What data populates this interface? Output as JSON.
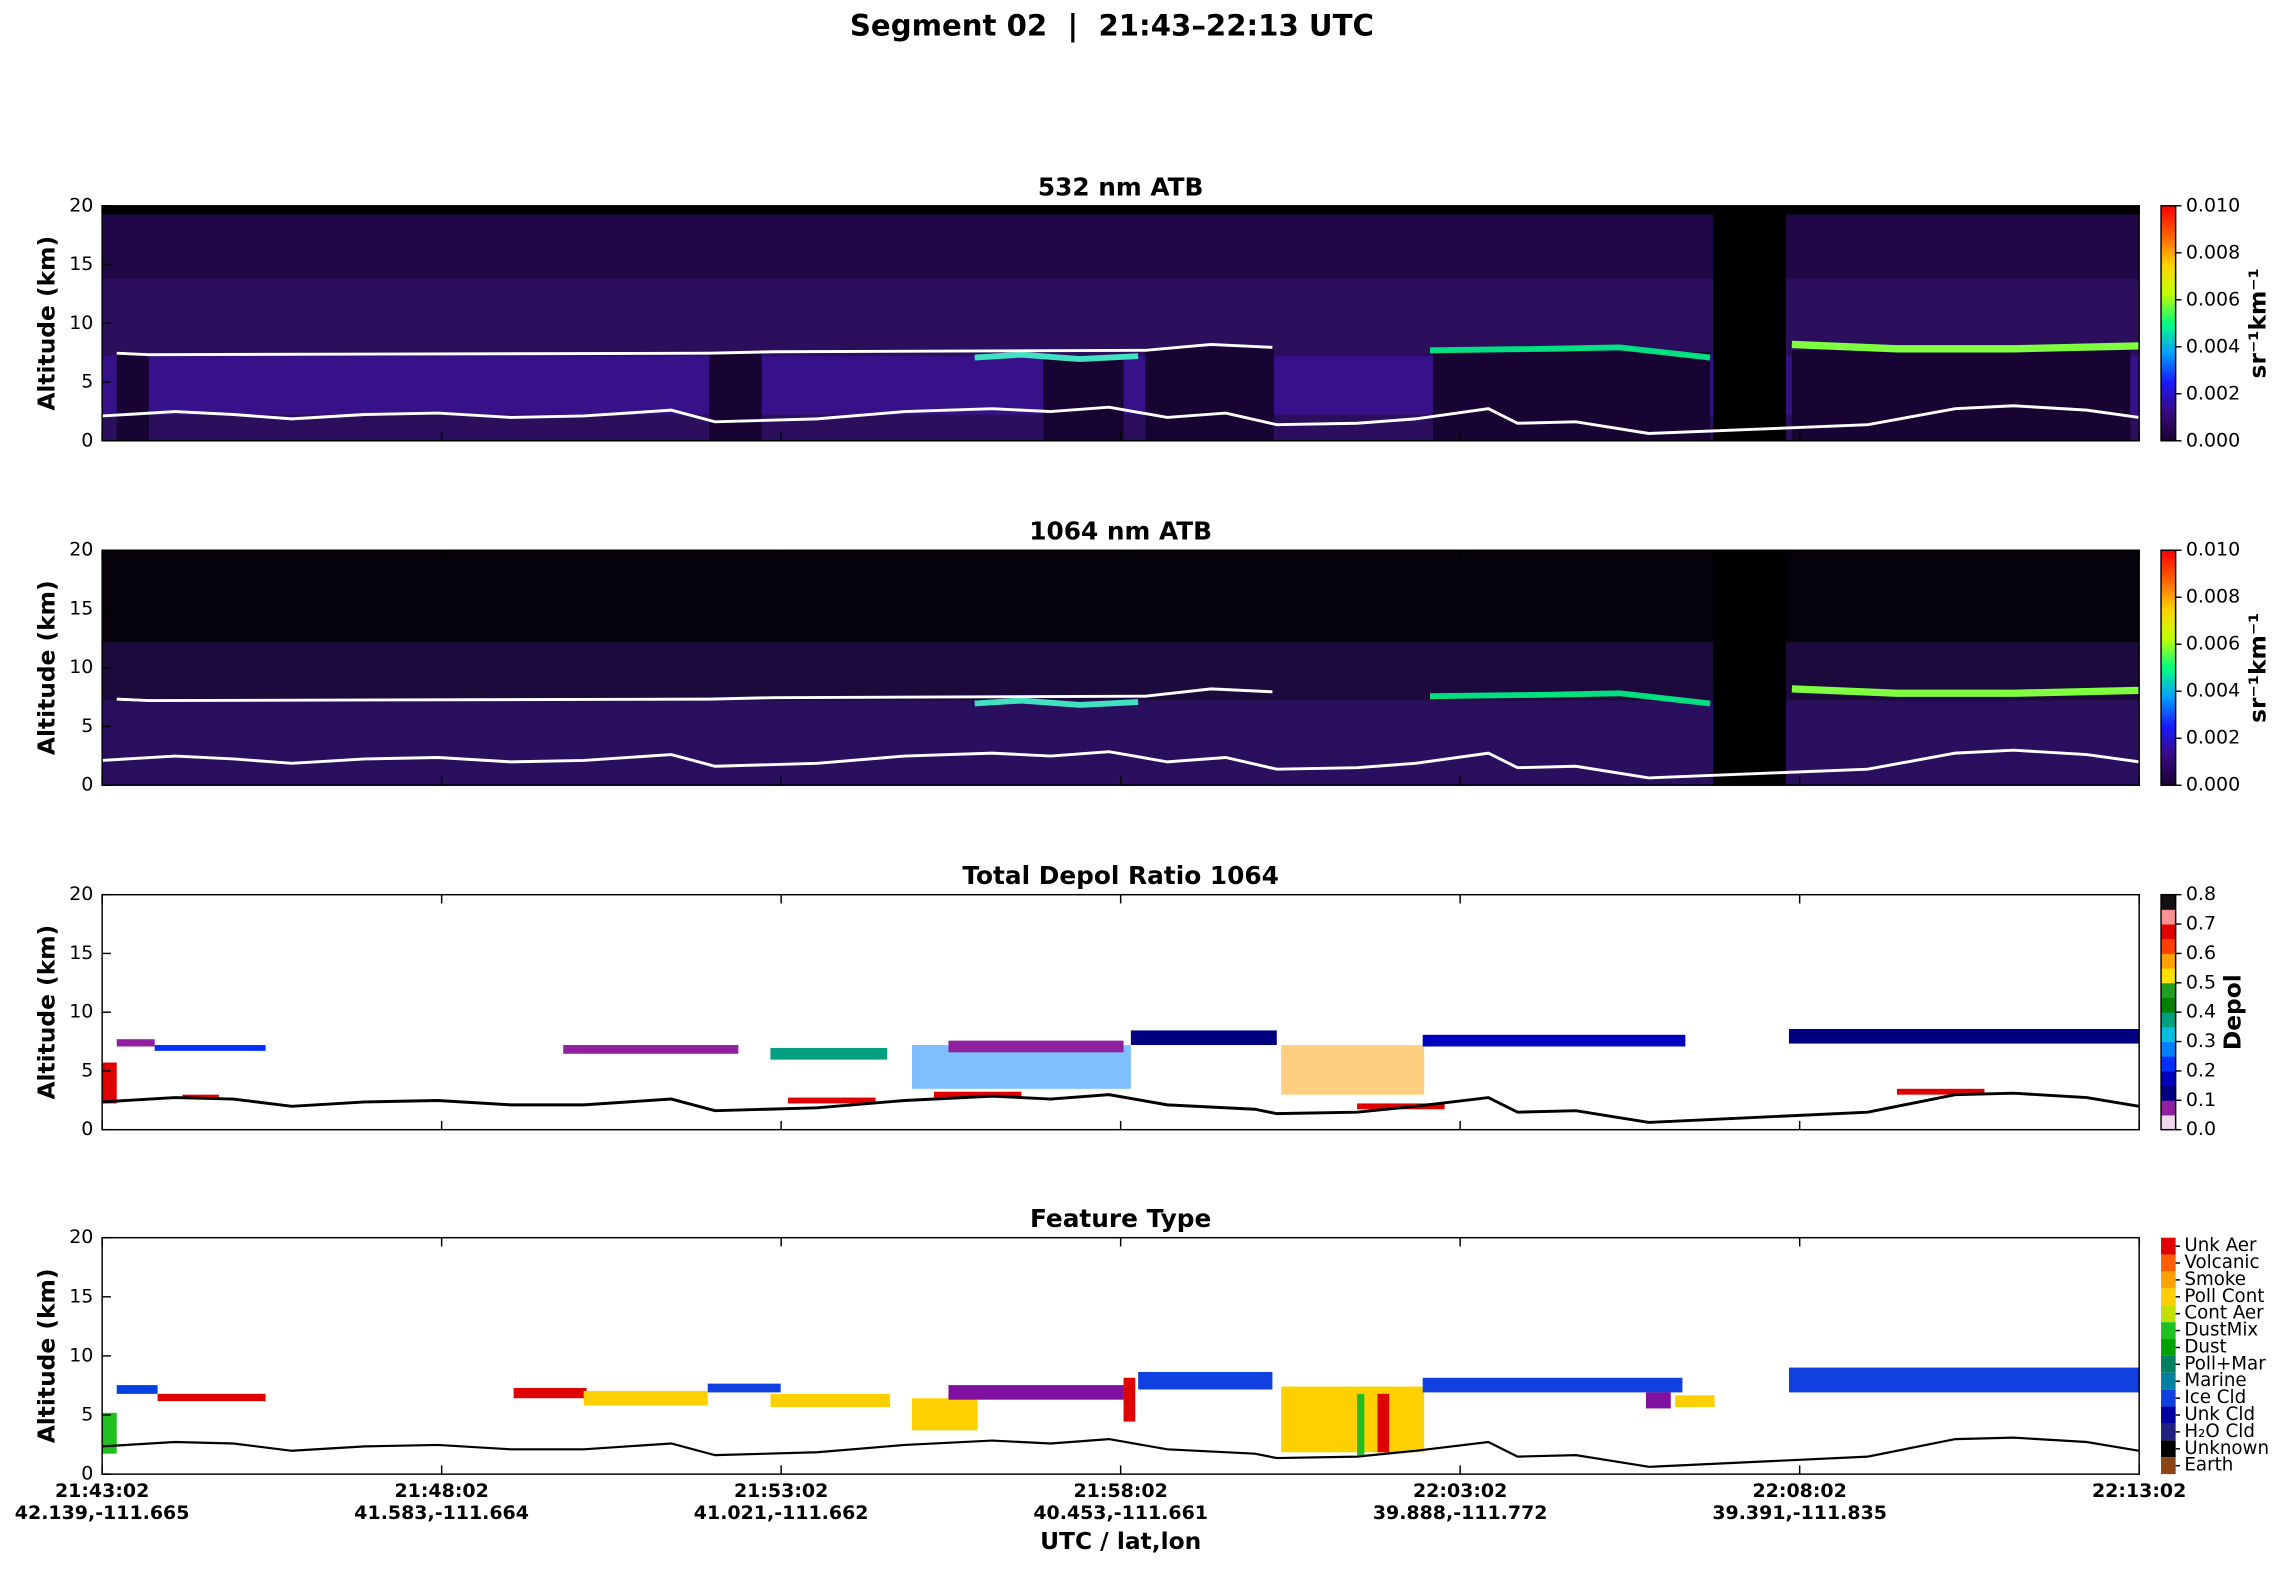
{
  "title": "Segment 02  |  21:43–22:13 UTC",
  "xlabel": "UTC / lat,lon",
  "xticks": [
    {
      "time": "21:43:02",
      "latlon": "42.139,-111.665"
    },
    {
      "time": "21:48:02",
      "latlon": "41.583,-111.664"
    },
    {
      "time": "21:53:02",
      "latlon": "41.021,-111.662"
    },
    {
      "time": "21:58:02",
      "latlon": "40.453,-111.661"
    },
    {
      "time": "22:03:02",
      "latlon": "39.888,-111.772"
    },
    {
      "time": "22:08:02",
      "latlon": "39.391,-111.835"
    },
    {
      "time": "22:13:02"
    }
  ],
  "chart_data": [
    {
      "type": "heatmap",
      "title": "532 nm ATB",
      "ylabel": "Altitude (km)",
      "ylim": [
        0,
        20
      ],
      "yticks": [
        0,
        5,
        10,
        15,
        20
      ],
      "colorbar": {
        "label": "sr⁻¹km⁻¹",
        "lim": [
          0,
          0.01
        ],
        "ticks": [
          {
            "value": 0,
            "label": "0.000"
          },
          {
            "value": 0.002,
            "label": "0.002"
          },
          {
            "value": 0.004,
            "label": "0.004"
          },
          {
            "value": 0.006,
            "label": "0.006"
          },
          {
            "value": 0.008,
            "label": "0.008"
          },
          {
            "value": 0.01,
            "label": "0.010"
          }
        ],
        "colors": [
          "#1a0033",
          "#3a0a80",
          "#1a1aff",
          "#00a0ff",
          "#00ff80",
          "#c0ff00",
          "#ffd000",
          "#ff6000",
          "#ff0000"
        ]
      }
    },
    {
      "type": "heatmap",
      "title": "1064 nm ATB",
      "ylabel": "Altitude (km)",
      "ylim": [
        0,
        20
      ],
      "yticks": [
        0,
        5,
        10,
        15,
        20
      ],
      "colorbar": {
        "label": "sr⁻¹km⁻¹",
        "lim": [
          0,
          0.01
        ],
        "ticks": [
          {
            "value": 0,
            "label": "0.000"
          },
          {
            "value": 0.002,
            "label": "0.002"
          },
          {
            "value": 0.004,
            "label": "0.004"
          },
          {
            "value": 0.006,
            "label": "0.006"
          },
          {
            "value": 0.008,
            "label": "0.008"
          },
          {
            "value": 0.01,
            "label": "0.010"
          }
        ],
        "colors": [
          "#1a0033",
          "#3a0a80",
          "#1a1aff",
          "#00a0ff",
          "#00ff80",
          "#c0ff00",
          "#ffd000",
          "#ff6000",
          "#ff0000"
        ]
      }
    },
    {
      "type": "heatmap",
      "title": "Total Depol Ratio 1064",
      "ylabel": "Altitude (km)",
      "ylim": [
        0,
        20
      ],
      "yticks": [
        0,
        5,
        10,
        15,
        20
      ],
      "colorbar": {
        "label": "Depol",
        "lim": [
          0,
          0.8
        ],
        "ticks": [
          {
            "value": 0,
            "label": "0.0"
          },
          0.1,
          0.2,
          0.3,
          0.4,
          0.5,
          0.6,
          0.7,
          0.8
        ],
        "colors": [
          "#f0d8f0",
          "#9020a0",
          "#000080",
          "#0000c0",
          "#0030ff",
          "#0080ff",
          "#00c0e0",
          "#00a080",
          "#008000",
          "#20a020",
          "#ffe000",
          "#ffa000",
          "#ff4000",
          "#e00000",
          "#ff9090",
          "#101010"
        ]
      }
    },
    {
      "type": "heatmap",
      "title": "Feature Type",
      "ylabel": "Altitude (km)",
      "ylim": [
        0,
        20
      ],
      "yticks": [
        0,
        5,
        10,
        15,
        20
      ],
      "colorbar": {
        "categories": [
          "Unk Aer",
          "Volcanic",
          "Smoke",
          "Poll Cont",
          "Cont Aer",
          "DustMix",
          "Dust",
          "Poll+Mar",
          "Marine",
          "Ice Cld",
          "Unk Cld",
          "H₂O Cld",
          "Unknown",
          "Earth"
        ],
        "colors": [
          "#e00000",
          "#ff6000",
          "#ffa000",
          "#ffd000",
          "#c0e000",
          "#20c020",
          "#00a000",
          "#008060",
          "#0080a0",
          "#1040e0",
          "#0000a0",
          "#202080",
          "#000000",
          "#8b4513"
        ]
      }
    }
  ]
}
